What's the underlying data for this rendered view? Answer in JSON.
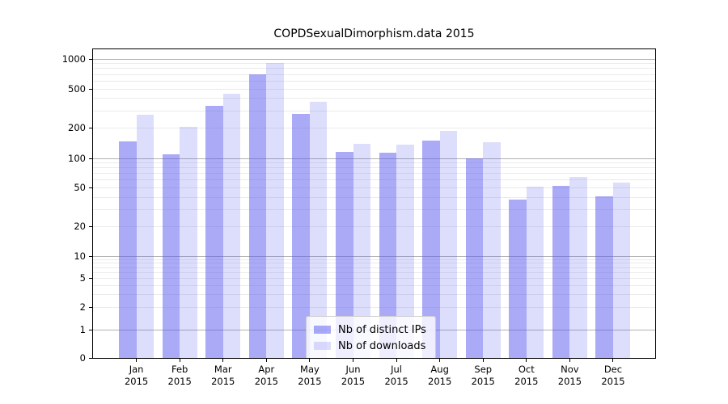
{
  "chart_data": {
    "type": "bar",
    "title": "COPDSexualDimorphism.data 2015",
    "categories": [
      "Jan 2015",
      "Feb 2015",
      "Mar 2015",
      "Apr 2015",
      "May 2015",
      "Jun 2015",
      "Jul 2015",
      "Aug 2015",
      "Sep 2015",
      "Oct 2015",
      "Nov 2015",
      "Dec 2015"
    ],
    "series": [
      {
        "name": "Nb of distinct IPs",
        "color": "rgba(85,85,240,0.5)",
        "values": [
          148,
          110,
          336,
          705,
          282,
          116,
          114,
          152,
          100,
          38,
          52,
          41
        ]
      },
      {
        "name": "Nb of downloads",
        "color": "rgba(85,85,240,0.2)",
        "values": [
          275,
          208,
          447,
          905,
          371,
          141,
          138,
          190,
          146,
          51,
          64,
          56
        ]
      }
    ],
    "xlabel": "",
    "ylabel": "",
    "y_ticks": [
      1000,
      500,
      200,
      100,
      50,
      20,
      10,
      5,
      2,
      1,
      0
    ],
    "ylim": [
      0,
      1275
    ],
    "y_scale": "log above 1, linear 0-1",
    "grid": {
      "major_lines": [
        1,
        10,
        100,
        1000
      ],
      "minor_lines": [
        2,
        3,
        4,
        5,
        6,
        7,
        8,
        9,
        20,
        30,
        40,
        50,
        60,
        70,
        80,
        90,
        200,
        300,
        400,
        500,
        600,
        700,
        800,
        900
      ],
      "major_color": "#b2b2b2",
      "minor_color": "#ebebeb"
    },
    "legend": {
      "position": "lower center",
      "entries": [
        {
          "label": "Nb of distinct IPs",
          "swatch_color": "rgba(85,85,240,0.5)"
        },
        {
          "label": "Nb of downloads",
          "swatch_color": "rgba(85,85,240,0.2)"
        }
      ]
    },
    "axis_color": "#000000",
    "text_color": "#000000",
    "background_color": "#ffffff"
  }
}
